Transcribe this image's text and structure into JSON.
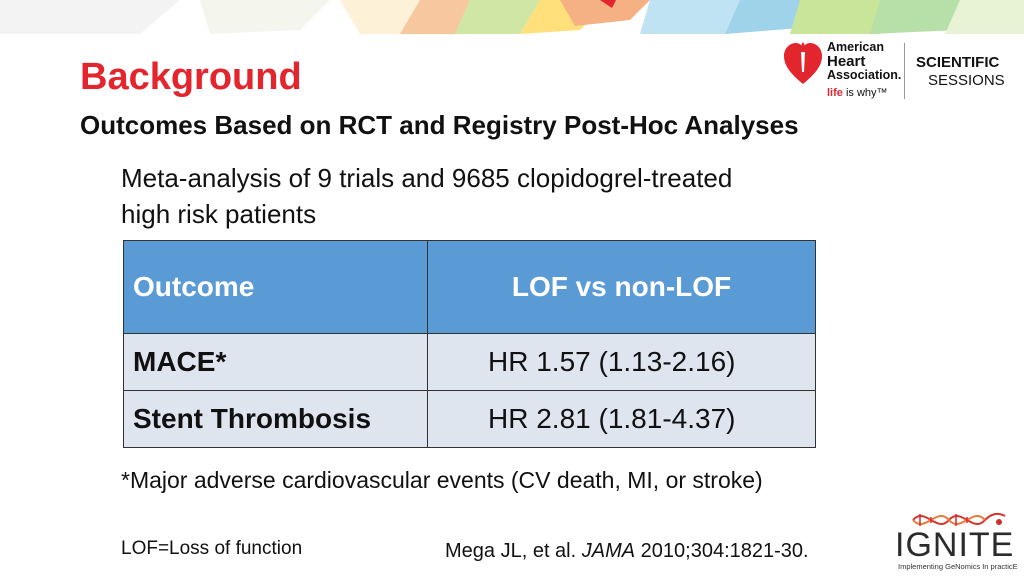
{
  "colors": {
    "accent": "#e3262e",
    "header_fill": "#5b9bd5",
    "row_fill": "#dfe5ef"
  },
  "slide": {
    "title": "Background",
    "subtitle": "Outcomes Based on RCT and Registry Post-Hoc Analyses",
    "intro": "Meta-analysis of 9 trials and 9685 clopidogrel-treated high risk patients"
  },
  "logos": {
    "aha_lines": [
      "American",
      "Heart",
      "Association."
    ],
    "aha_tagline_life": "life",
    "aha_tagline_rest": "is why™",
    "sessions_line1": "SCIENTIFIC",
    "sessions_line2": "SESSIONS",
    "ignite_word": "IGNITE",
    "ignite_tagline": "Implementing GeNomics In practicE"
  },
  "table": {
    "headers": [
      "Outcome",
      "LOF vs non-LOF"
    ],
    "rows": [
      [
        "MACE*",
        "HR 1.57 (1.13-2.16)"
      ],
      [
        "Stent Thrombosis",
        "HR 2.81 (1.81-4.37)"
      ]
    ]
  },
  "footnotes": {
    "mace": "*Major adverse cardiovascular events (CV death, MI, or stroke)",
    "lof": "LOF=Loss of function",
    "citation_prefix": "Mega JL, et al. ",
    "citation_journal": "JAMA",
    "citation_suffix": " 2010;304:1821-30."
  }
}
